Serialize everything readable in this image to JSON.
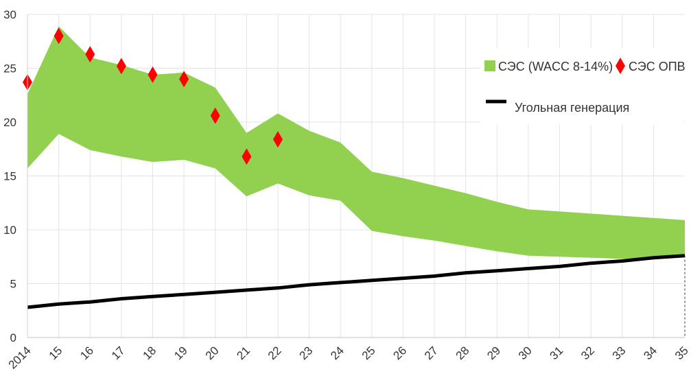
{
  "chart_data": {
    "type": "area",
    "categories": [
      "2014",
      "15",
      "16",
      "17",
      "18",
      "19",
      "20",
      "21",
      "22",
      "23",
      "24",
      "25",
      "26",
      "27",
      "28",
      "29",
      "30",
      "31",
      "32",
      "33",
      "34",
      "35"
    ],
    "ylim": [
      0,
      30
    ],
    "yticks": [
      0,
      5,
      10,
      15,
      20,
      25,
      30
    ],
    "grid": "vertical and horizontal",
    "legend_position": "top-right",
    "series": [
      {
        "name": "СЭС (WACC 8-14%)",
        "type": "band",
        "color": "#92d050",
        "low": [
          15.7,
          18.9,
          17.4,
          16.8,
          16.3,
          16.5,
          15.7,
          13.1,
          14.3,
          13.2,
          12.7,
          9.9,
          9.4,
          9.0,
          8.5,
          8.0,
          7.6,
          7.5,
          7.4,
          7.3,
          7.3,
          7.5
        ],
        "high": [
          22.6,
          28.9,
          26.0,
          25.3,
          24.4,
          24.6,
          23.2,
          19.0,
          20.8,
          19.2,
          18.1,
          15.4,
          14.8,
          14.1,
          13.4,
          12.6,
          11.9,
          11.7,
          11.5,
          11.3,
          11.1,
          10.9
        ]
      },
      {
        "name": "СЭС ОПВ",
        "type": "scatter",
        "marker": "diamond",
        "color": "#ff0000",
        "values": [
          23.7,
          28.0,
          26.3,
          25.2,
          24.4,
          24.0,
          20.6,
          16.8,
          18.4,
          null,
          null,
          null,
          null,
          null,
          null,
          null,
          null,
          null,
          null,
          null,
          null,
          null
        ]
      },
      {
        "name": "Угольная генерация",
        "type": "line",
        "color": "#000000",
        "values": [
          2.8,
          3.1,
          3.3,
          3.6,
          3.8,
          4.0,
          4.2,
          4.4,
          4.6,
          4.9,
          5.1,
          5.3,
          5.5,
          5.7,
          6.0,
          6.2,
          6.4,
          6.6,
          6.9,
          7.1,
          7.4,
          7.6
        ]
      }
    ]
  }
}
